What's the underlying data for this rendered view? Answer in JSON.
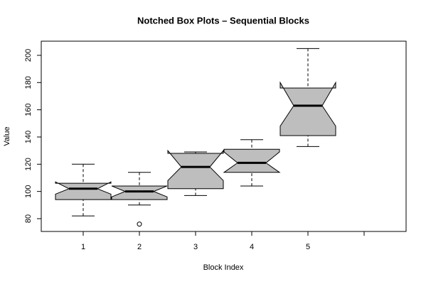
{
  "chart_data": {
    "type": "notched-box",
    "title": "Notched Box Plots – Sequential Blocks",
    "x_label": "Block Index",
    "y_label": "Value",
    "categories": [
      "1",
      "2",
      "3",
      "4",
      "5",
      null
    ],
    "whisker_low": [
      82,
      90,
      97,
      104,
      133,
      null
    ],
    "q1": [
      94,
      94,
      102,
      114,
      141,
      null
    ],
    "median": [
      102,
      100,
      118,
      121,
      163,
      null
    ],
    "q3": [
      106,
      104,
      128,
      131,
      176,
      null
    ],
    "whisker_high": [
      120,
      114,
      129,
      138,
      205,
      null
    ],
    "notch_low": [
      98,
      96,
      108,
      114,
      148,
      null
    ],
    "notch_high": [
      107,
      104,
      130,
      129,
      180,
      null
    ],
    "outliers": [
      [],
      [
        76
      ],
      [],
      [],
      [],
      []
    ],
    "color": "#bebebe",
    "ylim": [
      70.6,
      210.4
    ],
    "yticks": [
      80,
      100,
      120,
      140,
      160,
      180,
      200
    ]
  }
}
